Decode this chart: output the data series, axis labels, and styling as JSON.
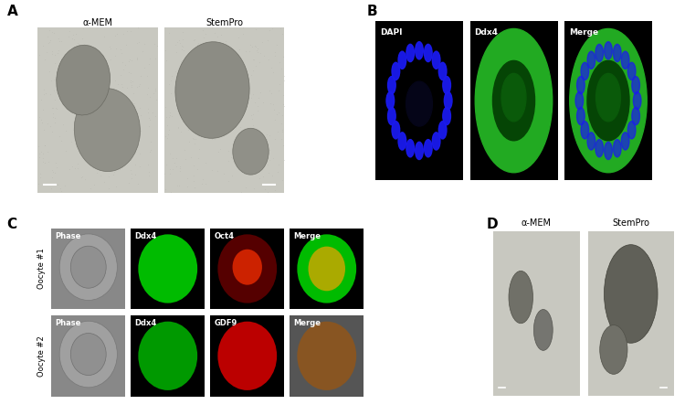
{
  "panel_A_label": "A",
  "panel_B_label": "B",
  "panel_C_label": "C",
  "panel_D_label": "D",
  "panel_A_sublabels": [
    "α-MEM",
    "StemPro"
  ],
  "panel_B_sublabels": [
    "DAPI",
    "Ddx4",
    "Merge"
  ],
  "panel_C_row1_labels": [
    "Phase",
    "Ddx4",
    "Oct4",
    "Merge"
  ],
  "panel_C_row2_labels": [
    "Phase",
    "Ddx4",
    "GDF9",
    "Merge"
  ],
  "panel_C_row_side_labels": [
    "Oocyte #1",
    "Oocyte #2"
  ],
  "panel_D_sublabels": [
    "α-MEM",
    "StemPro"
  ],
  "bg_color": "#ffffff"
}
